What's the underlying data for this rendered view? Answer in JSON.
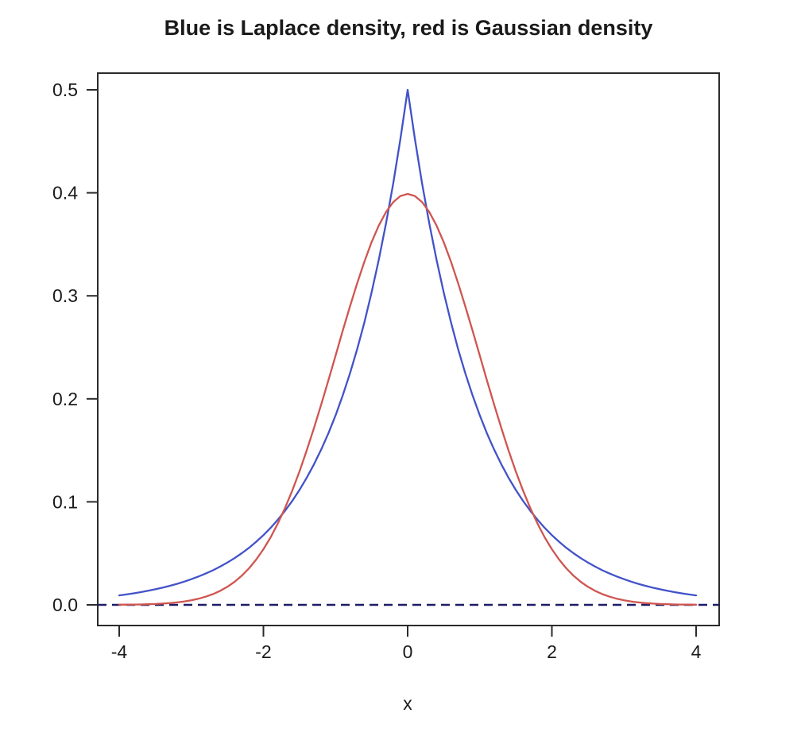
{
  "colors": {
    "laplace_blue": "#4252c8",
    "gaussian_red": "#cf5550",
    "zero_line_navy": "#1c1c66",
    "axis_stroke": "#2b2b2b",
    "text": "#1a1a1a",
    "background": "#ffffff"
  },
  "chart_data": {
    "type": "line",
    "title": "Blue is Laplace density, red is Gaussian density",
    "xlabel": "x",
    "ylabel": "",
    "xlim": [
      -4,
      4
    ],
    "ylim": [
      0,
      0.5
    ],
    "grid": false,
    "legend_position": "none (series identified in title)",
    "x_ticks": [
      -4,
      -2,
      0,
      2,
      4
    ],
    "x_tick_labels": [
      "-4",
      "-2",
      "0",
      "2",
      "4"
    ],
    "y_ticks": [
      0.0,
      0.1,
      0.2,
      0.3,
      0.4,
      0.5
    ],
    "y_tick_labels": [
      "0.0",
      "0.1",
      "0.2",
      "0.3",
      "0.4",
      "0.5"
    ],
    "reference_line": {
      "y": 0,
      "style": "dashed",
      "color_key": "zero_line_navy",
      "name": "zero-reference-line"
    },
    "x": [
      -4.0,
      -3.9,
      -3.8,
      -3.7,
      -3.6,
      -3.5,
      -3.4,
      -3.3,
      -3.2,
      -3.1,
      -3.0,
      -2.9,
      -2.8,
      -2.7,
      -2.6,
      -2.5,
      -2.4,
      -2.3,
      -2.2,
      -2.1,
      -2.0,
      -1.9,
      -1.8,
      -1.7,
      -1.6,
      -1.5,
      -1.4,
      -1.3,
      -1.2,
      -1.1,
      -1.0,
      -0.9,
      -0.8,
      -0.7,
      -0.6,
      -0.5,
      -0.4,
      -0.3,
      -0.2,
      -0.1,
      0.0,
      0.1,
      0.2,
      0.3,
      0.4,
      0.5,
      0.6,
      0.7,
      0.8,
      0.9,
      1.0,
      1.1,
      1.2,
      1.3,
      1.4,
      1.5,
      1.6,
      1.7,
      1.8,
      1.9,
      2.0,
      2.1,
      2.2,
      2.3,
      2.4,
      2.5,
      2.6,
      2.7,
      2.8,
      2.9,
      3.0,
      3.1,
      3.2,
      3.3,
      3.4,
      3.5,
      3.6,
      3.7,
      3.8,
      3.9,
      4.0
    ],
    "series": [
      {
        "name": "Laplace density",
        "color_key": "laplace_blue",
        "style": "solid",
        "values": [
          0.00916,
          0.01012,
          0.01119,
          0.01236,
          0.01366,
          0.0151,
          0.01669,
          0.01844,
          0.02038,
          0.02252,
          0.02489,
          0.02751,
          0.0304,
          0.0336,
          0.03714,
          0.04104,
          0.04536,
          0.05013,
          0.0554,
          0.06123,
          0.06767,
          0.07478,
          0.08265,
          0.09134,
          0.10095,
          0.11156,
          0.1233,
          0.13627,
          0.1506,
          0.16644,
          0.18394,
          0.20328,
          0.22466,
          0.24829,
          0.27441,
          0.30327,
          0.33516,
          0.37041,
          0.40937,
          0.45242,
          0.5,
          0.45242,
          0.40937,
          0.37041,
          0.33516,
          0.30327,
          0.27441,
          0.24829,
          0.22466,
          0.20328,
          0.18394,
          0.16644,
          0.1506,
          0.13627,
          0.1233,
          0.11156,
          0.10095,
          0.09134,
          0.08265,
          0.07478,
          0.06767,
          0.06123,
          0.0554,
          0.05013,
          0.04536,
          0.04104,
          0.03714,
          0.0336,
          0.0304,
          0.02751,
          0.02489,
          0.02252,
          0.02038,
          0.01844,
          0.01669,
          0.0151,
          0.01366,
          0.01236,
          0.01119,
          0.01012,
          0.00916
        ]
      },
      {
        "name": "Gaussian density",
        "color_key": "gaussian_red",
        "style": "solid",
        "values": [
          0.00013,
          0.0002,
          0.00029,
          0.00042,
          0.00061,
          0.00087,
          0.00123,
          0.00172,
          0.00238,
          0.00327,
          0.00443,
          0.00595,
          0.00792,
          0.01042,
          0.01358,
          0.01753,
          0.02239,
          0.02833,
          0.03547,
          0.04398,
          0.05399,
          0.06562,
          0.07895,
          0.09405,
          0.11092,
          0.12952,
          0.14973,
          0.17137,
          0.19419,
          0.21785,
          0.24197,
          0.26609,
          0.28969,
          0.31225,
          0.33322,
          0.35207,
          0.36827,
          0.38139,
          0.39104,
          0.39695,
          0.39894,
          0.39695,
          0.39104,
          0.38139,
          0.36827,
          0.35207,
          0.33322,
          0.31225,
          0.28969,
          0.26609,
          0.24197,
          0.21785,
          0.19419,
          0.17137,
          0.14973,
          0.12952,
          0.11092,
          0.09405,
          0.07895,
          0.06562,
          0.05399,
          0.04398,
          0.03547,
          0.02833,
          0.02239,
          0.01753,
          0.01358,
          0.01042,
          0.00792,
          0.00595,
          0.00443,
          0.00327,
          0.00238,
          0.00172,
          0.00123,
          0.00087,
          0.00061,
          0.00042,
          0.00029,
          0.0002,
          0.00013
        ]
      }
    ]
  }
}
